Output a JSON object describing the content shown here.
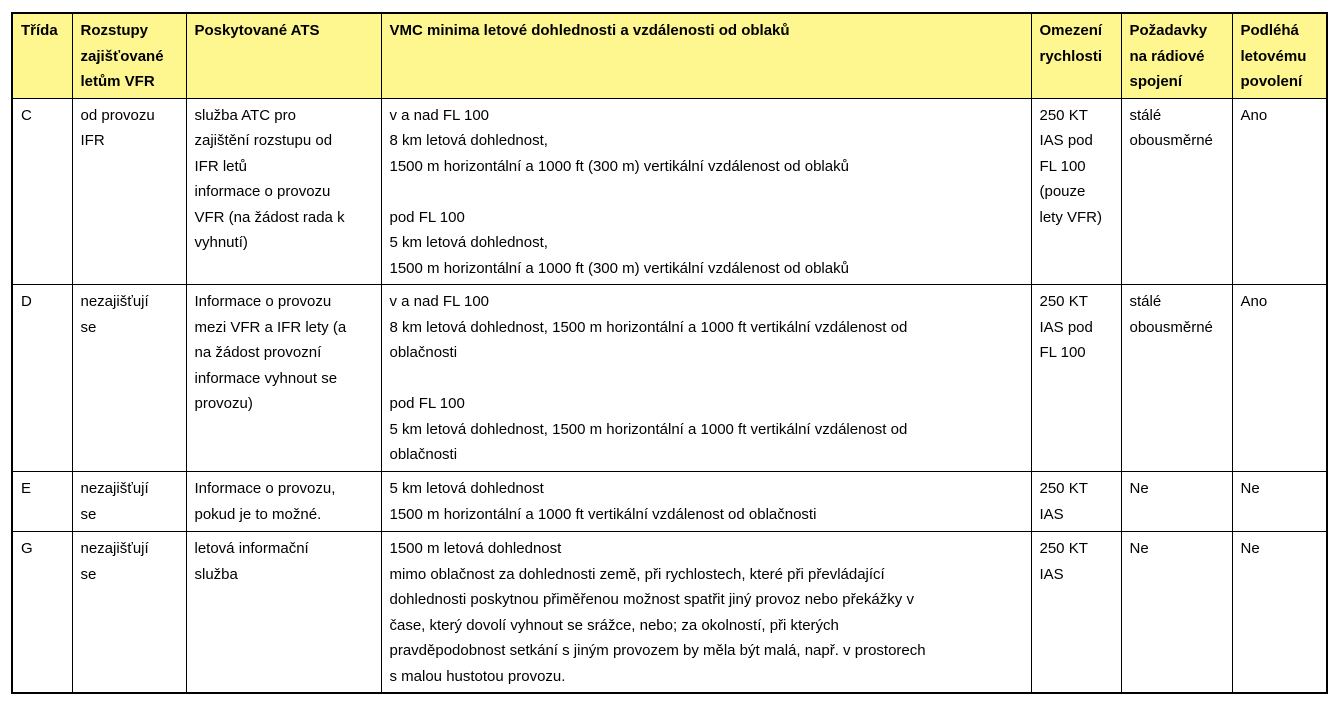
{
  "colors": {
    "header_bg": "#fef78f",
    "border": "#000000",
    "text": "#000000"
  },
  "table": {
    "headers": [
      "Třída",
      "Rozstupy\nzajišťované\nletům VFR",
      "Poskytované ATS",
      "VMC minima letové dohlednosti a vzdálenosti od oblaků",
      "Omezení\nrychlosti",
      "Požadavky\nna rádiové\nspojení",
      "Podléhá\nletovému\npovolení"
    ],
    "rows": [
      [
        "C",
        "od provozu\nIFR",
        "služba ATC pro\nzajištění rozstupu od\nIFR letů\ninformace o provozu\nVFR (na žádost rada k\nvyhnutí)",
        "v a nad FL 100\n8 km letová dohlednost,\n1500 m horizontální a 1000 ft (300 m) vertikální vzdálenost od oblaků\n\npod FL 100\n5 km letová dohlednost,\n1500 m horizontální a 1000 ft (300 m) vertikální vzdálenost od oblaků",
        "250 KT\nIAS pod\nFL 100\n(pouze\nlety VFR)",
        "stálé\nobousměrné",
        "Ano"
      ],
      [
        "D",
        "nezajišťují\nse",
        "Informace o provozu\nmezi VFR a IFR lety (a\nna žádost provozní\ninformace vyhnout se\nprovozu)",
        "v a nad FL 100\n8 km letová dohlednost, 1500 m horizontální a 1000 ft vertikální vzdálenost od\noblačnosti\n\npod FL 100\n5 km letová dohlednost, 1500 m horizontální a 1000 ft vertikální vzdálenost od\noblačnosti",
        "250 KT\nIAS pod\nFL 100",
        "stálé\nobousměrné",
        "Ano"
      ],
      [
        "E",
        "nezajišťují\nse",
        "Informace o provozu,\npokud je to možné.",
        "5 km letová dohlednost\n1500 m horizontální a 1000 ft vertikální vzdálenost od oblačnosti",
        "250 KT\nIAS",
        "Ne",
        "Ne"
      ],
      [
        "G",
        "nezajišťují\nse",
        "letová informační\nslužba",
        "1500 m letová dohlednost\nmimo oblačnost za dohlednosti země, při rychlostech, které při převládající\ndohlednosti poskytnou přiměřenou možnost spatřit jiný provoz nebo překážky v\nčase, který dovolí vyhnout se srážce, nebo; za okolností, při kterých\npravděpodobnost setkání s jiným provozem by měla být malá, např. v prostorech\ns malou hustotou provozu.",
        "250 KT\nIAS",
        "Ne",
        "Ne"
      ]
    ]
  }
}
